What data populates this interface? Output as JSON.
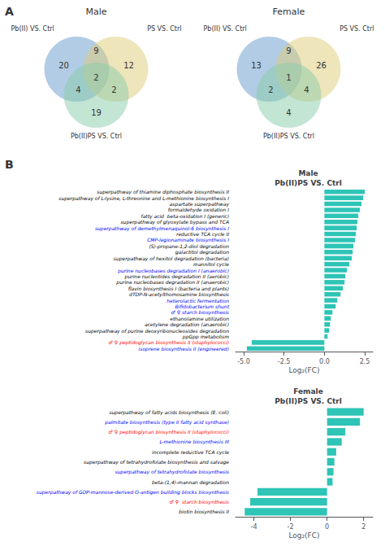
{
  "chart_data": [
    {
      "type": "venn",
      "title": "Male",
      "annotations": [
        "A"
      ],
      "series": [
        {
          "name": "Pb(II) VS. Ctrl",
          "color": "#6699CC"
        },
        {
          "name": "PS VS. Ctrl",
          "color": "#DDCC77"
        },
        {
          "name": "Pb(II)PS VS. Ctrl",
          "color": "#88CCAA"
        }
      ],
      "regions": [
        [
          "Pb(II) VS. Ctrl"
        ],
        [
          "PS VS. Ctrl"
        ],
        [
          "Pb(II)PS VS. Ctrl"
        ],
        [
          "Pb(II) VS. Ctrl",
          "PS VS. Ctrl"
        ],
        [
          "Pb(II) VS. Ctrl",
          "Pb(II)PS VS. Ctrl"
        ],
        [
          "PS VS. Ctrl",
          "Pb(II)PS VS. Ctrl"
        ],
        [
          "Pb(II) VS. Ctrl",
          "PS VS. Ctrl",
          "Pb(II)PS VS. Ctrl"
        ]
      ],
      "values": [
        20,
        12,
        19,
        9,
        4,
        2,
        2
      ]
    },
    {
      "type": "venn",
      "title": "Female",
      "series": [
        {
          "name": "Pb(II) VS. Ctrl",
          "color": "#6699CC"
        },
        {
          "name": "PS VS. Ctrl",
          "color": "#DDCC77"
        },
        {
          "name": "Pb(II)PS VS. Ctrl",
          "color": "#88CCAA"
        }
      ],
      "regions": [
        [
          "Pb(II) VS. Ctrl"
        ],
        [
          "PS VS. Ctrl"
        ],
        [
          "Pb(II)PS VS. Ctrl"
        ],
        [
          "Pb(II) VS. Ctrl",
          "PS VS. Ctrl"
        ],
        [
          "Pb(II) VS. Ctrl",
          "Pb(II)PS VS. Ctrl"
        ],
        [
          "PS VS. Ctrl",
          "Pb(II)PS VS. Ctrl"
        ],
        [
          "Pb(II) VS. Ctrl",
          "PS VS. Ctrl",
          "Pb(II)PS VS. Ctrl"
        ]
      ],
      "values": [
        13,
        26,
        4,
        9,
        2,
        4,
        1
      ]
    },
    {
      "type": "bar",
      "orientation": "horizontal",
      "title": "Male\nPb(II)PS VS. Ctrl",
      "xlabel": "Log₂(FC)",
      "annotations": [
        "B"
      ],
      "categories": [
        "superpathway of thiamine diphosphate biosynthesis II",
        "superpathway of L-lysine, L-threonine and L-methionine biosynthesis I",
        "aspartate superpathway",
        "formaldehyde oxidation I",
        "fatty acid  beta-oxidation I (generic)",
        "superpathway of glyoxylate bypass and TCA",
        "superpathway of demethylmenaquinol-6 biosynthesis I",
        "reductive TCA cycle II",
        "CMP-legionaminate biosynthesis I",
        "(S)-propane-1,2-diol degradation",
        "galactitol degradation",
        "superpathway of hexitol degradation (bacteria)",
        "mannitol cycle",
        "purine nucleobases degradation I (anaerobic)",
        "purine nucleotides degradation II (aerobic)",
        "purine nucleobases degradation II (anaerobic)",
        "flavin biosynthesis I (bacteria and plants)",
        "dTDP-N-acetylthomosamine biosynthesis",
        "heterolactic fermentation",
        "Bifidobacterium shunt",
        "♂ ♀ starch biosynthesis",
        "ethanolamine utilization",
        "acetylene degradation (anaerobic)",
        "superpathway of purine deoxyribonucleosides degradation",
        "ppGpp metabolism",
        "♂ ♀ peptidoglycan biosynthesis II (staphylococci)",
        "isoprene biosynthesis II (engineered)"
      ],
      "values": [
        2.5,
        2.4,
        2.3,
        2.2,
        2.1,
        2.05,
        2.0,
        1.95,
        1.9,
        1.8,
        1.75,
        1.7,
        1.55,
        1.4,
        1.3,
        1.25,
        1.15,
        1.0,
        0.8,
        0.7,
        0.5,
        0.4,
        0.35,
        0.3,
        0.2,
        -4.5,
        -4.8
      ],
      "color": "#2EC4B6",
      "label_colors": [
        "black",
        "black",
        "black",
        "black",
        "black",
        "black",
        "blue",
        "black",
        "blue",
        "black",
        "black",
        "black",
        "black",
        "blue",
        "black",
        "black",
        "black",
        "black",
        "blue",
        "blue",
        "blue",
        "black",
        "black",
        "black",
        "black",
        "red",
        "blue"
      ],
      "xlim": [
        -5.5,
        3.0
      ],
      "xticks": [
        {
          "value": -5.0,
          "label": "-5.0"
        },
        -2.5,
        {
          "value": 0.0,
          "label": "0.0"
        },
        2.5
      ],
      "grid": false
    },
    {
      "type": "bar",
      "orientation": "horizontal",
      "title": "Female\nPb(II)PS VS. Ctrl",
      "xlabel": "Log₂(FC)",
      "categories": [
        "superpathway of fatty acids biosynthesis (E. coli)",
        "palmitate biosynthesis (type II fatty acid synthase)",
        "♂ ♀ peptidoglycan biosynthesis II (staphylococci)",
        "L-methionine biosynthesis III",
        "incomplete reductive TCA cycle",
        "superpathway of tetrahydrofolate biosynthesis and salvage",
        "superpathway of tetrahydrofolate biosynthesis",
        "beta-(1,4)-mannan degradation",
        "superpathway of GDP-mannose-derived O-antigen building blocks biosynthesis",
        "♂ ♀  starch biosynthesis",
        "biotin biosynthesis II"
      ],
      "values": [
        2.0,
        1.8,
        1.0,
        0.8,
        0.5,
        0.4,
        0.35,
        0.3,
        -3.8,
        -4.2,
        -4.5
      ],
      "color": "#2EC4B6",
      "label_colors": [
        "black",
        "blue",
        "red",
        "blue",
        "black",
        "black",
        "blue",
        "black",
        "blue",
        "red",
        "black"
      ],
      "xlim": [
        -5.0,
        2.5
      ],
      "xticks": [
        -4,
        -2,
        0,
        2
      ],
      "grid": false
    }
  ]
}
